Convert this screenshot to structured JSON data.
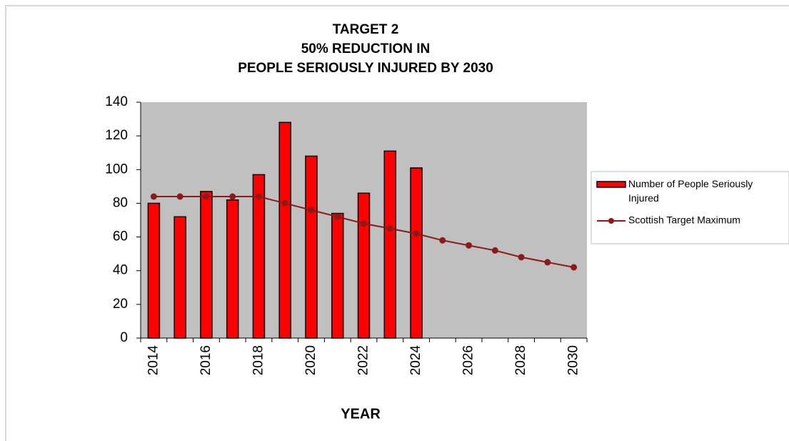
{
  "chart_data": {
    "type": "bar_line",
    "title": [
      "TARGET 2",
      "50% REDUCTION IN",
      "PEOPLE SERIOUSLY INJURED BY 2030"
    ],
    "x_label": "YEAR",
    "categories": [
      "2014",
      null,
      "2016",
      null,
      "2018",
      null,
      "2020",
      null,
      "2022",
      null,
      "2024",
      null,
      "2026",
      null,
      "2028",
      null,
      "2030"
    ],
    "series": [
      {
        "name": "Number of People Seriously Injured",
        "type": "bar",
        "color": "#ff0000",
        "values": [
          80,
          72,
          87,
          82,
          97,
          128,
          108,
          74,
          86,
          111,
          101,
          null,
          null,
          null,
          null,
          null,
          null
        ]
      },
      {
        "name": "Scottish Target Maximum",
        "type": "line",
        "color": "#8b1a1a",
        "values": [
          84,
          84,
          84,
          84,
          84,
          80,
          76,
          72,
          68,
          65,
          62,
          58,
          55,
          52,
          48,
          45,
          42
        ]
      }
    ],
    "ylim": [
      0,
      140
    ],
    "yticks": [
      0,
      20,
      40,
      60,
      80,
      100,
      120,
      140
    ],
    "plot_background": "#c0c0c0"
  }
}
